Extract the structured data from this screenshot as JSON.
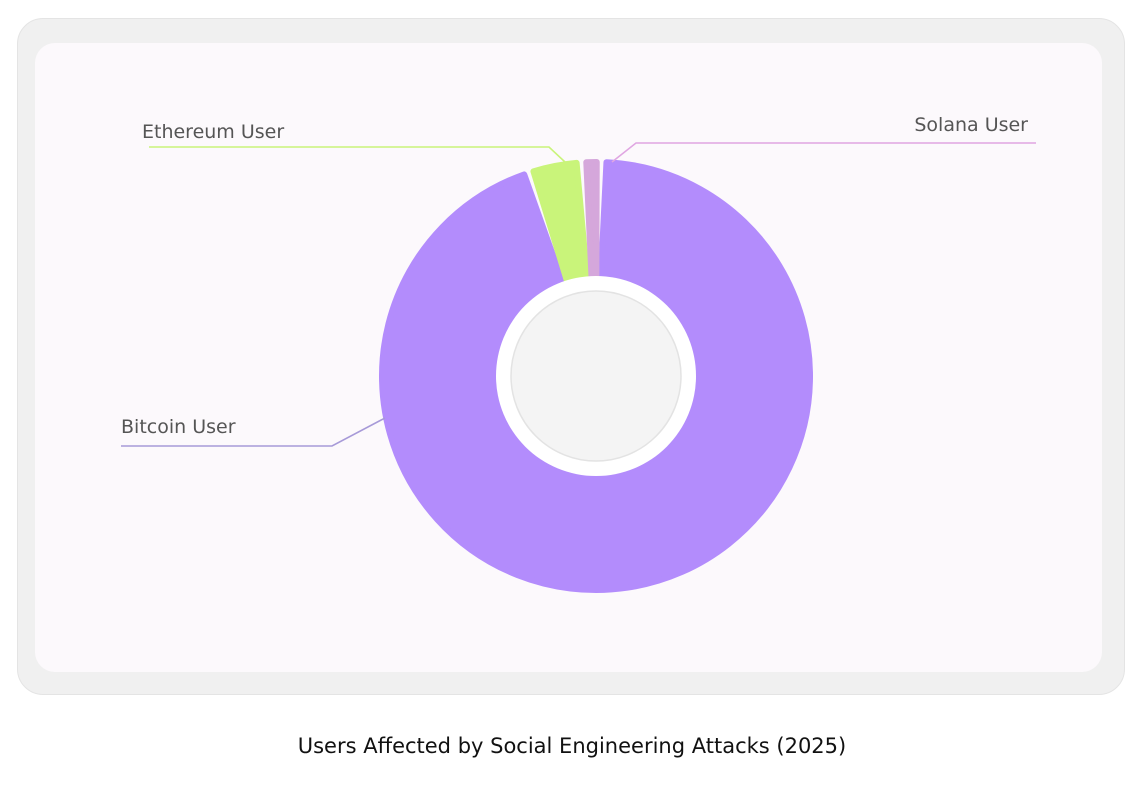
{
  "chart_data": {
    "type": "pie",
    "style": "donut",
    "title": "Users Affected by Social Engineering Attacks (2025)",
    "slices": [
      {
        "label": "Bitcoin User",
        "value": 94.5,
        "color": "#b38cfc"
      },
      {
        "label": "Ethereum User",
        "value": 4.0,
        "color": "#c9f47a"
      },
      {
        "label": "Solana User",
        "value": 1.5,
        "color": "#d5a7db"
      }
    ],
    "legend": "callout-labels",
    "center_fill": "#f4f4f4"
  }
}
